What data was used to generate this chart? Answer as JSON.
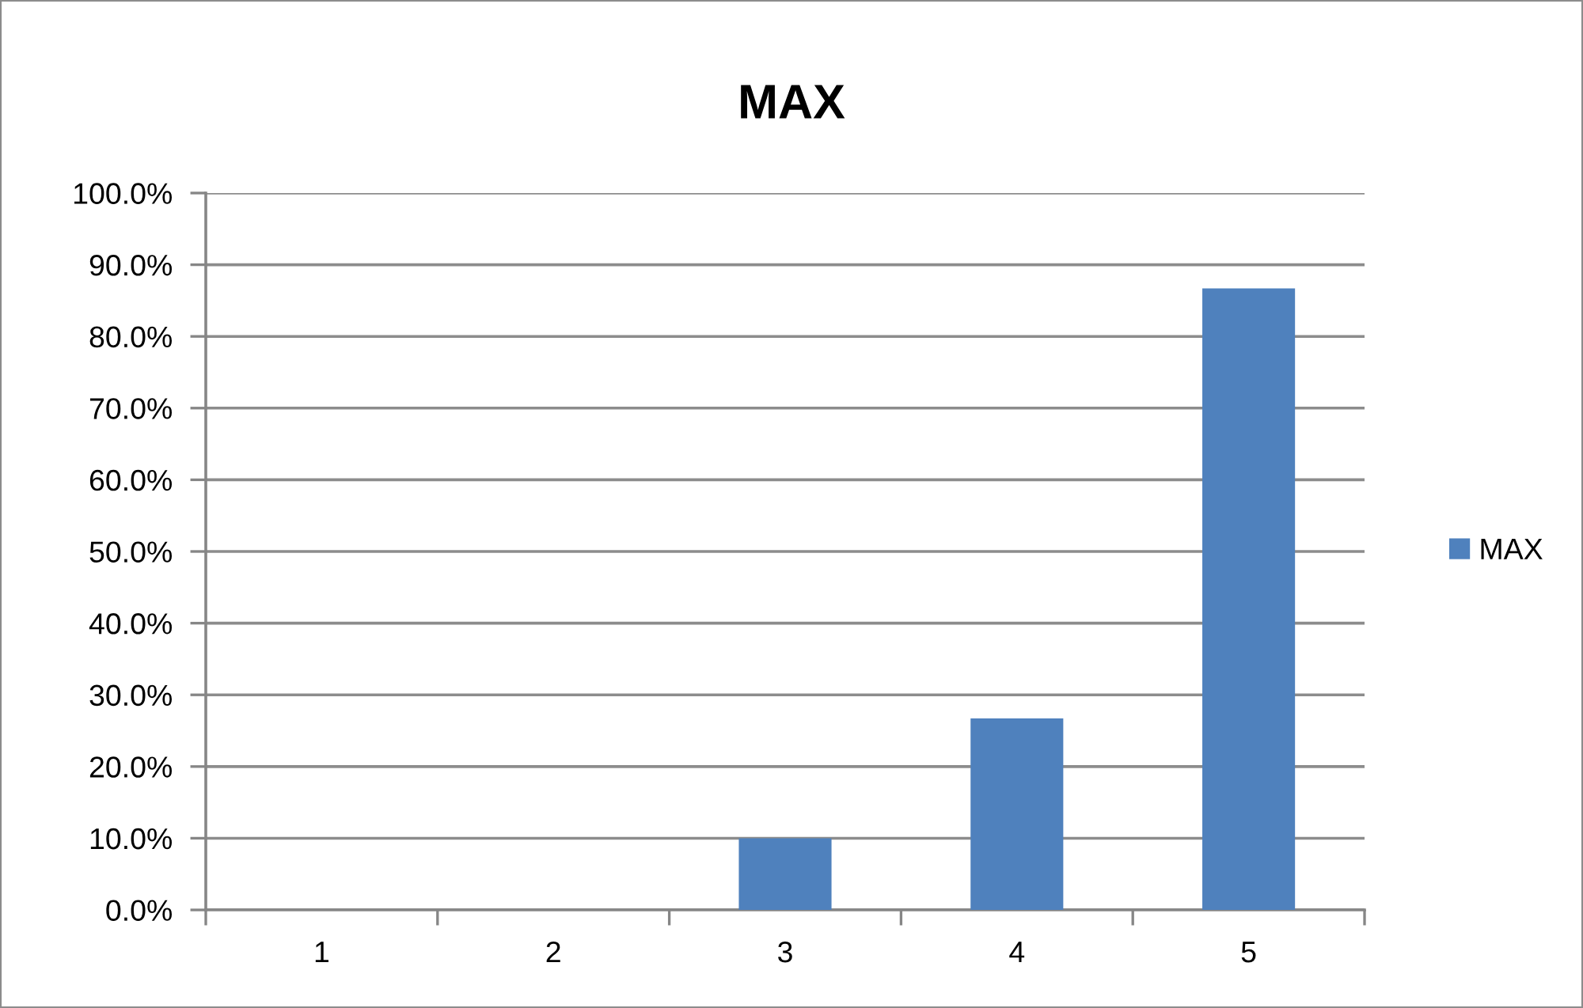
{
  "chart_data": {
    "type": "bar",
    "title": "MAX",
    "categories": [
      "1",
      "2",
      "3",
      "4",
      "5"
    ],
    "series": [
      {
        "name": "MAX",
        "color": "#4f81bd",
        "values": [
          0,
          0,
          10.0,
          26.7,
          86.7
        ]
      }
    ],
    "ylim": [
      0,
      100
    ],
    "yticks": [
      {
        "value": 0,
        "label": "0.0%"
      },
      {
        "value": 10,
        "label": "10.0%"
      },
      {
        "value": 20,
        "label": "20.0%"
      },
      {
        "value": 30,
        "label": "30.0%"
      },
      {
        "value": 40,
        "label": "40.0%"
      },
      {
        "value": 50,
        "label": "50.0%"
      },
      {
        "value": 60,
        "label": "60.0%"
      },
      {
        "value": 70,
        "label": "70.0%"
      },
      {
        "value": 80,
        "label": "80.0%"
      },
      {
        "value": 90,
        "label": "90.0%"
      },
      {
        "value": 100,
        "label": "100.0%"
      }
    ],
    "grid": "y",
    "legend": "right"
  }
}
